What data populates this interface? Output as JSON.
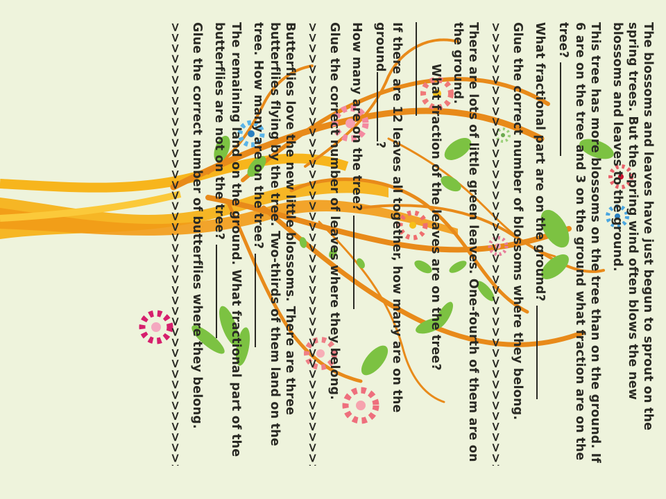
{
  "worksheet": {
    "intro": "The blossoms and leaves have just begun to sprout on the spring trees. But the spring wind often blows the new blossoms and leaves to the ground.",
    "q1": "This tree has more blossoms on the tree than on the ground. If 6 are on the tree and 3 on the ground what fraction are on the tree?",
    "q2": "What fractional part are on the ground?",
    "glue_blossoms": "Glue the correct number of blossoms where they belong.",
    "arrow_row": ">>>>>>>>>>>>>>>>>>>>>>>>>>>>>>>>>>>>>>>>>>>>>>>",
    "leaves_intro": "There are lots of little green leaves. One-fourth of them are on the ground.",
    "q3": "What fraction of the leaves are on the tree?",
    "q4_start": "If there are 12 leaves all together, how many are on the ground",
    "q4_end": "?",
    "q5": "How many are on the tree?",
    "glue_leaves": "Glue the correct number of leaves where they belong.",
    "butterflies_intro": "Butterflies love the new little blossoms. There are three butterflies flying by the tree. Two-thirds of them land on the tree. How many are on the tree?",
    "q6": "The remaining land on the ground. What fractional part of the butterflies are not on the tree?",
    "glue_butterflies": "Glue the correct number of butterflies where they belong."
  }
}
